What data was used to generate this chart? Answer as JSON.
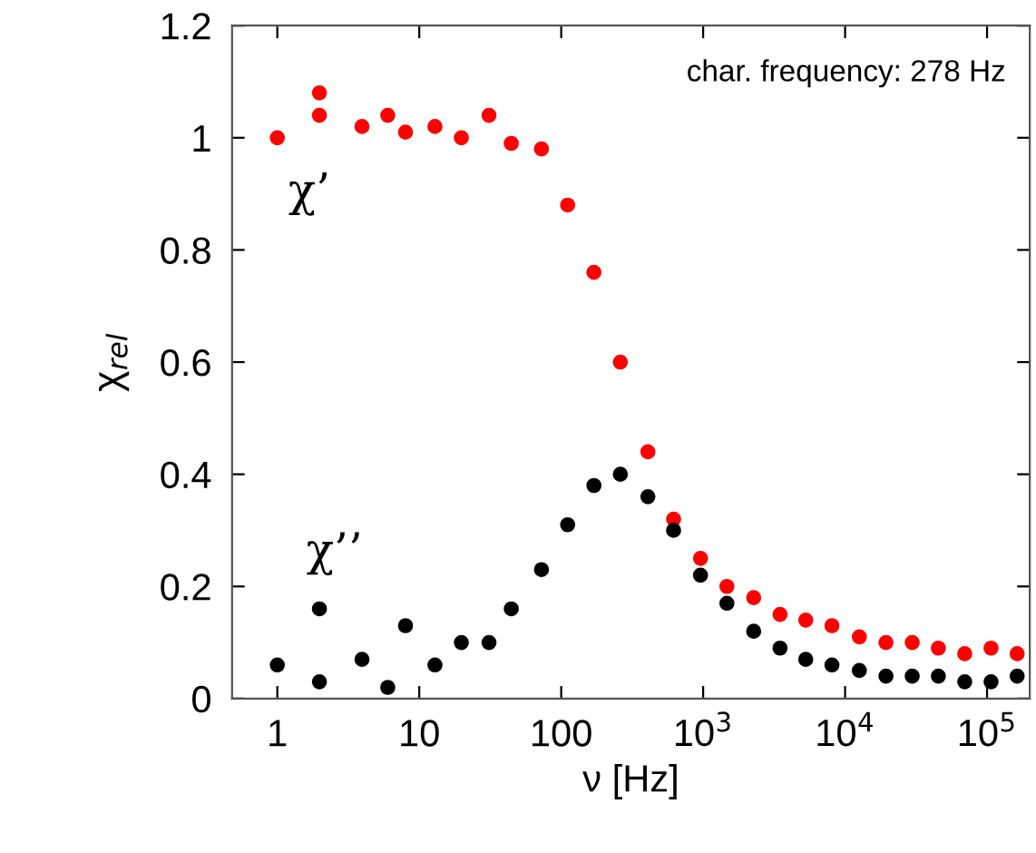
{
  "chart_data": {
    "type": "scatter",
    "xlabel": "ν [Hz]",
    "ylabel": "χ$_{rel}$",
    "log": "x",
    "marker": "circle",
    "grid": false,
    "annotations": [
      "char. frequency: 278 Hz"
    ],
    "xlim": [
      0.48,
      200000
    ],
    "xticks": [
      1,
      10,
      100,
      {
        "value": 1000,
        "label": "10$^{3}$"
      },
      {
        "value": 10000,
        "label": "10$^{4}$"
      },
      {
        "value": 100000,
        "label": "10$^{5}$"
      }
    ],
    "ylim": [
      0,
      1.2
    ],
    "yticks": [
      0,
      0.2,
      0.4,
      0.6,
      0.8,
      1,
      1.2
    ],
    "x": [
      1,
      1.98,
      1.98,
      3.95,
      6,
      8,
      12.9,
      19.8,
      31,
      44.5,
      72.6,
      111,
      170,
      261,
      408,
      619,
      958,
      1470,
      2270,
      3480,
      5280,
      8080,
      12600,
      19400,
      29700,
      45400,
      69600,
      106700,
      163000
    ],
    "series": [
      {
        "name": "χ’",
        "color": "#ff0000",
        "values": [
          1.0,
          1.08,
          1.04,
          1.02,
          1.04,
          1.01,
          1.02,
          1.0,
          1.04,
          0.99,
          0.98,
          0.88,
          0.76,
          0.6,
          0.44,
          0.32,
          0.25,
          0.2,
          0.18,
          0.15,
          0.14,
          0.13,
          0.11,
          0.1,
          0.1,
          0.09,
          0.08,
          0.09,
          0.08
        ]
      },
      {
        "name": "χ’’",
        "color": "#000000",
        "values": [
          0.06,
          0.16,
          0.03,
          0.07,
          0.02,
          0.13,
          0.06,
          0.1,
          0.1,
          0.16,
          0.23,
          0.31,
          0.38,
          0.4,
          0.36,
          0.3,
          0.22,
          0.17,
          0.12,
          0.09,
          0.07,
          0.06,
          0.05,
          0.04,
          0.04,
          0.04,
          0.03,
          0.03,
          0.04
        ]
      }
    ]
  }
}
